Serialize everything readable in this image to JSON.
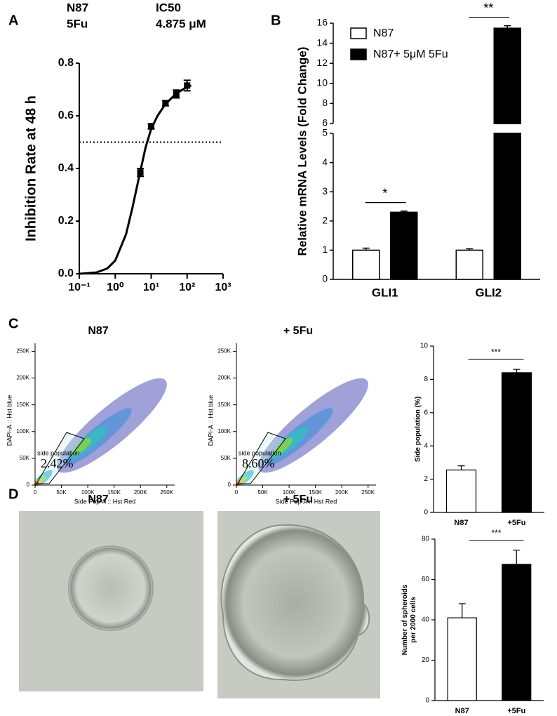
{
  "chart_data": [
    {
      "type": "line",
      "panel": "A",
      "header": [
        "N87",
        "5Fu",
        "IC50",
        "4.875 μM"
      ],
      "ylabel": "Inhibition Rate at 48 h",
      "xscale": "log",
      "xlim": [
        0.1,
        1000
      ],
      "xticks": [
        {
          "value": 0.1,
          "label": "10⁻¹"
        },
        {
          "value": 1,
          "label": "10⁰"
        },
        {
          "value": 10,
          "label": "10¹"
        },
        {
          "value": 100,
          "label": "10²"
        },
        {
          "value": 1000,
          "label": "10³"
        }
      ],
      "ylim": [
        0,
        0.8
      ],
      "yticks": [
        {
          "value": 0,
          "label": "0.0"
        },
        0.2,
        0.4,
        0.6,
        0.8
      ],
      "reference_line": 0.5,
      "color": "#000000",
      "points": {
        "x": [
          5,
          10,
          25,
          50,
          100
        ],
        "values": [
          0.385,
          0.56,
          0.648,
          0.683,
          0.715
        ],
        "errors": [
          0.015,
          0.01,
          0.01,
          0.015,
          0.02
        ]
      },
      "fit": {
        "x": [
          0.1,
          0.3,
          0.6,
          1,
          2,
          3,
          5,
          7,
          10,
          15,
          25,
          50,
          100,
          130
        ],
        "values": [
          0,
          0.005,
          0.02,
          0.05,
          0.15,
          0.25,
          0.39,
          0.48,
          0.55,
          0.6,
          0.645,
          0.685,
          0.71,
          0.715
        ]
      }
    },
    {
      "type": "bar",
      "panel": "B",
      "ylabel": "Relative mRNA Levels (Fold Change)",
      "categories": [
        "GLI1",
        "GLI2"
      ],
      "series": [
        {
          "name": "N87",
          "color": "#ffffff",
          "values": [
            1,
            1
          ],
          "errors": [
            0.07,
            0.05
          ]
        },
        {
          "name": "N87+ 5μM 5Fu",
          "color": "#000000",
          "values": [
            2.3,
            15.5
          ],
          "errors": [
            0.04,
            0.25
          ]
        }
      ],
      "ylim": [
        0,
        16
      ],
      "ybreak": [
        5,
        6
      ],
      "yticks": [
        0,
        1,
        2,
        3,
        4,
        5,
        6,
        8,
        10,
        12,
        14,
        16
      ],
      "significance": [
        "*",
        "**"
      ]
    },
    {
      "type": "flow",
      "panel": "C",
      "title": "N87",
      "xlabel": "Side Pop-A :: Hst Red",
      "ylabel": "DAPI-A :: Hst blue",
      "xlim": [
        0,
        265000
      ],
      "ylim": [
        0,
        265000
      ],
      "xticks": [
        0,
        {
          "value": 50000,
          "label": "50K"
        },
        {
          "value": 100000,
          "label": "100K"
        },
        {
          "value": 150000,
          "label": "150K"
        },
        {
          "value": 200000,
          "label": "200K"
        },
        {
          "value": 250000,
          "label": "250K"
        }
      ],
      "yticks": [
        0,
        {
          "value": 50000,
          "label": "50K"
        },
        {
          "value": 100000,
          "label": "100K"
        },
        {
          "value": 150000,
          "label": "150K"
        },
        {
          "value": 200000,
          "label": "200K"
        },
        {
          "value": 250000,
          "label": "250K"
        }
      ],
      "gate": {
        "label": "side population",
        "value": 2.42,
        "value_label": "2.42%"
      }
    },
    {
      "type": "flow",
      "title": "+ 5Fu",
      "xlabel": "Side Pop-A :: Hst Red",
      "ylabel": "DAPI-A :: Hst blue",
      "xlim": [
        0,
        265000
      ],
      "ylim": [
        0,
        265000
      ],
      "xticks": [
        0,
        {
          "value": 50000,
          "label": "50K"
        },
        {
          "value": 100000,
          "label": "100K"
        },
        {
          "value": 150000,
          "label": "150K"
        },
        {
          "value": 200000,
          "label": "200K"
        },
        {
          "value": 250000,
          "label": "250K"
        }
      ],
      "yticks": [
        0,
        {
          "value": 50000,
          "label": "50K"
        },
        {
          "value": 100000,
          "label": "100K"
        },
        {
          "value": 150000,
          "label": "150K"
        },
        {
          "value": 200000,
          "label": "200K"
        },
        {
          "value": 250000,
          "label": "250K"
        }
      ],
      "gate": {
        "label": "side population",
        "value": 8.6,
        "value_label": "8.60%"
      }
    },
    {
      "type": "bar",
      "ylabel": "Side population (%)",
      "categories": [
        "N87",
        "+5Fu"
      ],
      "values": [
        2.55,
        8.4
      ],
      "errors": [
        0.25,
        0.2
      ],
      "colors": [
        "#ffffff",
        "#000000"
      ],
      "ylim": [
        0,
        10
      ],
      "yticks": [
        0,
        2,
        4,
        6,
        8,
        10
      ],
      "significance": "***"
    },
    {
      "type": "image",
      "panel": "D",
      "title": "N87"
    },
    {
      "type": "image",
      "title": "+ 5Fu"
    },
    {
      "type": "bar",
      "ylabel": [
        "Number of spheroids",
        "per 2000 cells"
      ],
      "categories": [
        "N87",
        "+5Fu"
      ],
      "values": [
        41,
        67.5
      ],
      "errors": [
        7,
        7
      ],
      "colors": [
        "#ffffff",
        "#000000"
      ],
      "ylim": [
        0,
        80
      ],
      "yticks": [
        0,
        20,
        40,
        60,
        80
      ],
      "significance": "***"
    }
  ]
}
